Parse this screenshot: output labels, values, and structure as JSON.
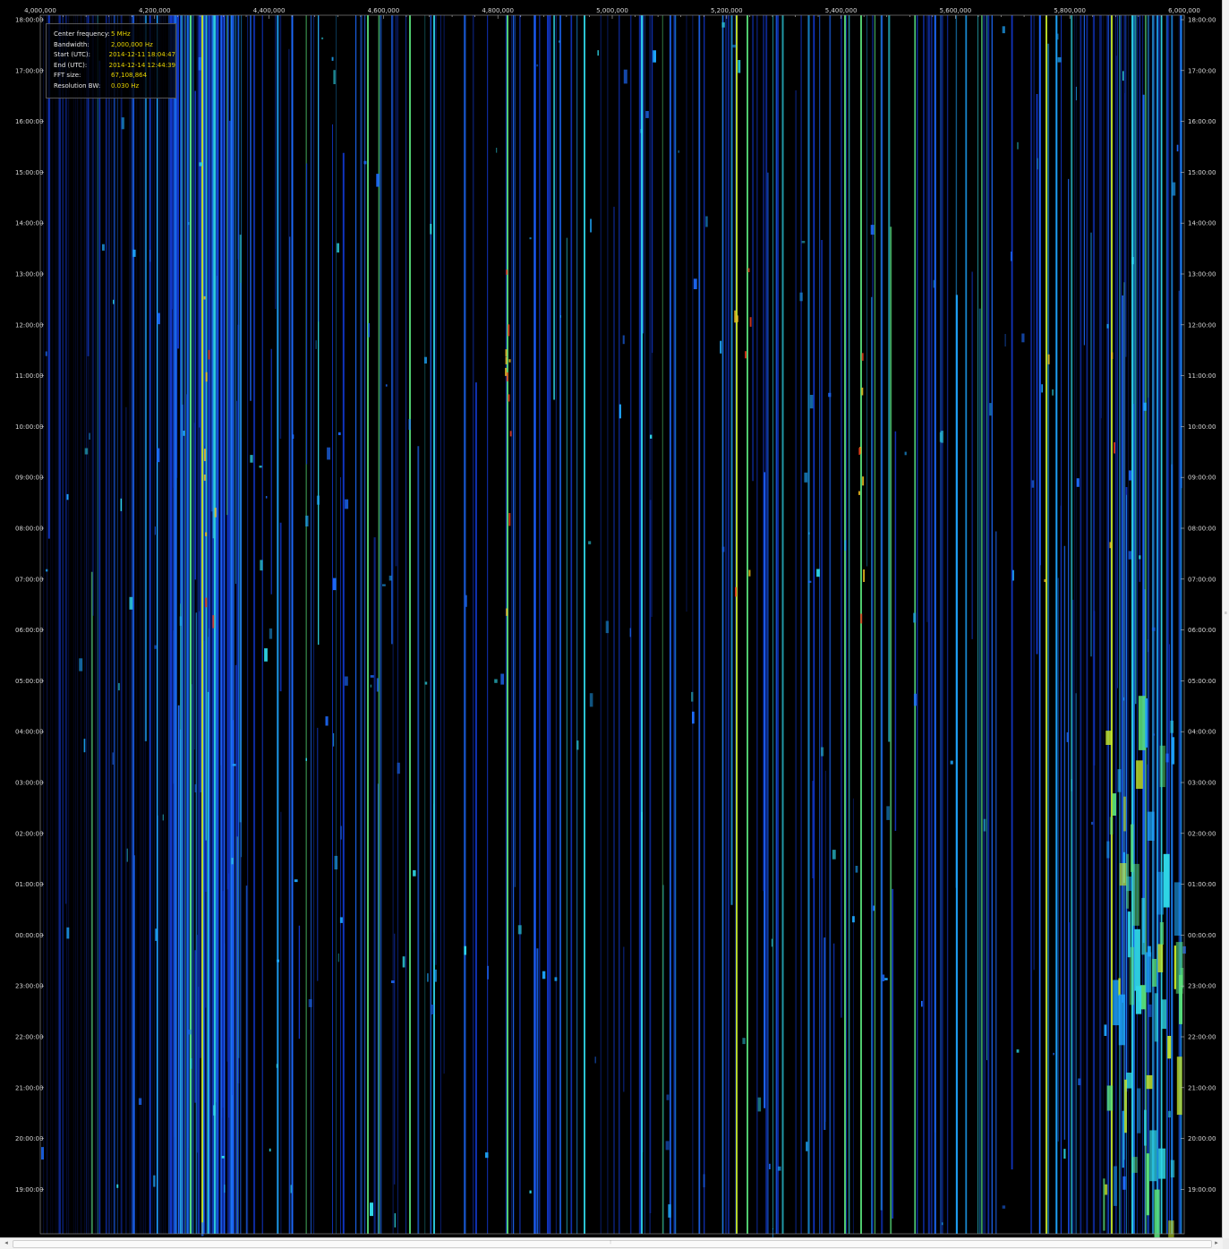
{
  "info_panel": {
    "rows": [
      {
        "key": "Center frequency:",
        "value": "5 MHz"
      },
      {
        "key": "Bandwidth:",
        "value": "2,000,000 Hz"
      },
      {
        "key": "Start (UTC):",
        "value": "2014-12-11 18:04:47"
      },
      {
        "key": "End (UTC):",
        "value": "2014-12-14 12:44:39"
      },
      {
        "key": "FFT size:",
        "value": "67,108,864"
      },
      {
        "key": "Resolution BW:",
        "value": "0.030 Hz"
      }
    ]
  },
  "freq_axis": {
    "labels": [
      "4,000,000",
      "4,200,000",
      "4,400,000",
      "4,600,000",
      "4,800,000",
      "5,000,000",
      "5,200,000",
      "5,400,000",
      "5,600,000",
      "5,800,000",
      "6,000,000"
    ]
  },
  "time_axis": {
    "labels": [
      "18:00:00",
      "17:00:00",
      "16:00:00",
      "15:00:00",
      "14:00:00",
      "13:00:00",
      "12:00:00",
      "11:00:00",
      "10:00:00",
      "09:00:00",
      "08:00:00",
      "07:00:00",
      "06:00:00",
      "05:00:00",
      "04:00:00",
      "03:00:00",
      "02:00:00",
      "01:00:00",
      "00:00:00",
      "23:00:00",
      "22:00:00",
      "21:00:00",
      "20:00:00",
      "19:00:00"
    ]
  },
  "colors": {
    "background": "#000000",
    "palette": [
      "#0a1a6e",
      "#1237c8",
      "#1e6cff",
      "#1fa8ff",
      "#2fd8e8",
      "#59e07a",
      "#c8ea2a",
      "#f0c020",
      "#e83a1a"
    ]
  },
  "scrollbar": {
    "h_left_arrow": "◂",
    "h_right_arrow": "▸",
    "h_grip": "⦙",
    "v_grip": "≡"
  }
}
